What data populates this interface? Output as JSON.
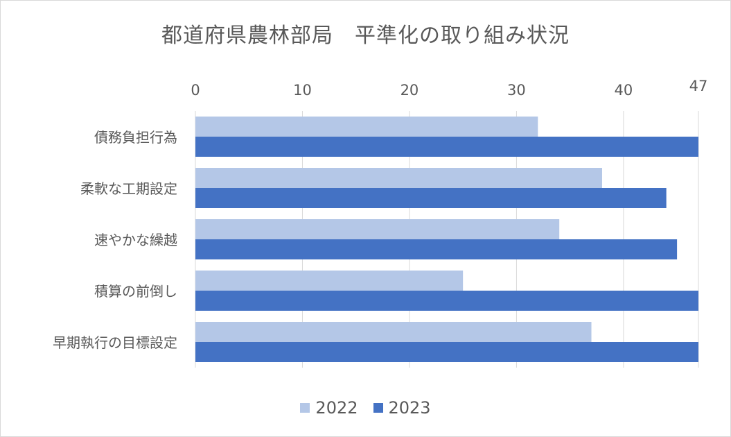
{
  "chart_data": {
    "type": "bar",
    "orientation": "horizontal",
    "title": "都道府県農林部局　平準化の取り組み状況",
    "categories": [
      "債務負担行為",
      "柔軟な工期設定",
      "速やかな繰越",
      "積算の前倒し",
      "早期執行の目標設定"
    ],
    "series": [
      {
        "name": "2022",
        "values": [
          32,
          38,
          34,
          25,
          37
        ],
        "color": "#b4c7e7"
      },
      {
        "name": "2023",
        "values": [
          47,
          44,
          45,
          47,
          47
        ],
        "color": "#4472c4"
      }
    ],
    "xlim": [
      0,
      47
    ],
    "xticks": [
      "0",
      "10",
      "20",
      "30",
      "40",
      "47"
    ],
    "xlabel": "",
    "ylabel": "",
    "grid": true,
    "axis_position": "top",
    "legend_position": "bottom"
  }
}
